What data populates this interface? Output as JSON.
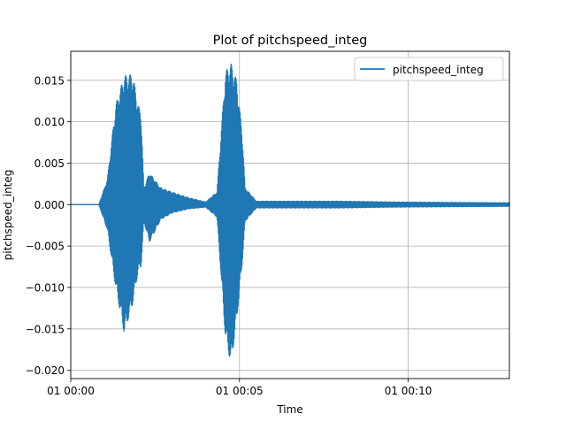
{
  "chart_data": {
    "type": "line",
    "title": "Plot of pitchspeed_integ",
    "xlabel": "Time",
    "ylabel": "pitchspeed_integ",
    "xlim": [
      "01 00:00:00",
      "01 00:13:00"
    ],
    "ylim": [
      -0.021,
      0.0185
    ],
    "x_ticks": [
      "01 00:00",
      "01 00:05",
      "01 00:10"
    ],
    "y_ticks": [
      -0.02,
      -0.015,
      -0.01,
      -0.005,
      0.0,
      0.005,
      0.01,
      0.015
    ],
    "y_tick_labels": [
      "−0.020",
      "−0.015",
      "−0.010",
      "−0.005",
      "0.000",
      "0.005",
      "0.010",
      "0.015"
    ],
    "grid": true,
    "legend_position": "top-right",
    "series": [
      {
        "name": "pitchspeed_integ",
        "color": "#1f77b4",
        "envelope": [
          {
            "t": "01 00:00:00",
            "min": 0.0,
            "max": 0.0
          },
          {
            "t": "01 00:00:50",
            "min": 0.0,
            "max": 0.0
          },
          {
            "t": "01 00:01:05",
            "min": -0.003,
            "max": 0.003
          },
          {
            "t": "01 00:01:20",
            "min": -0.01,
            "max": 0.012
          },
          {
            "t": "01 00:01:35",
            "min": -0.0155,
            "max": 0.0155
          },
          {
            "t": "01 00:01:50",
            "min": -0.012,
            "max": 0.0157
          },
          {
            "t": "01 00:02:00",
            "min": -0.008,
            "max": 0.012
          },
          {
            "t": "01 00:02:05",
            "min": -0.0075,
            "max": 0.011
          },
          {
            "t": "01 00:02:10",
            "min": -0.002,
            "max": 0.002
          },
          {
            "t": "01 00:02:20",
            "min": -0.0045,
            "max": 0.0038
          },
          {
            "t": "01 00:02:40",
            "min": -0.0018,
            "max": 0.002
          },
          {
            "t": "01 00:03:00",
            "min": -0.001,
            "max": 0.0015
          },
          {
            "t": "01 00:03:30",
            "min": -0.0005,
            "max": 0.0008
          },
          {
            "t": "01 00:04:00",
            "min": -0.0003,
            "max": 0.0003
          },
          {
            "t": "01 00:04:20",
            "min": -0.0015,
            "max": 0.0015
          },
          {
            "t": "01 00:04:35",
            "min": -0.016,
            "max": 0.016
          },
          {
            "t": "01 00:04:45",
            "min": -0.0193,
            "max": 0.017
          },
          {
            "t": "01 00:04:55",
            "min": -0.014,
            "max": 0.015
          },
          {
            "t": "01 00:05:05",
            "min": -0.007,
            "max": 0.0085
          },
          {
            "t": "01 00:05:10",
            "min": -0.002,
            "max": 0.002
          },
          {
            "t": "01 00:05:30",
            "min": -0.0004,
            "max": 0.0004
          },
          {
            "t": "01 00:08:00",
            "min": -0.0004,
            "max": 0.0004
          },
          {
            "t": "01 00:09:30",
            "min": -0.0003,
            "max": 0.0003
          },
          {
            "t": "01 00:13:00",
            "min": -0.0002,
            "max": 0.0002
          }
        ]
      }
    ]
  }
}
